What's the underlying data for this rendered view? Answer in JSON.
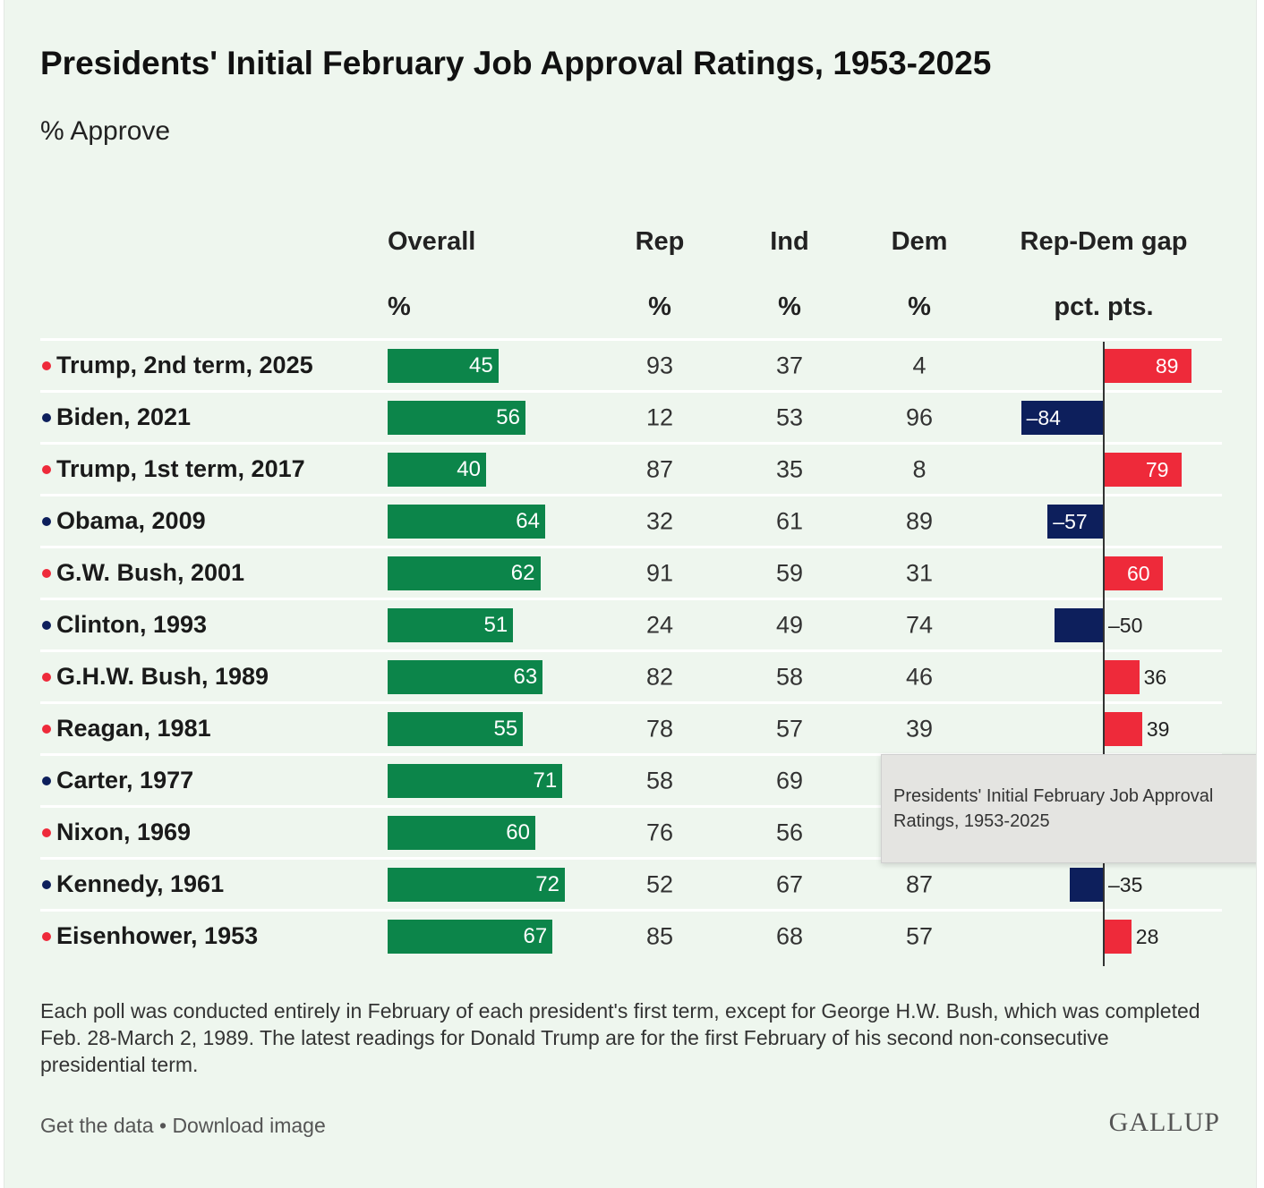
{
  "chart_data": {
    "type": "table",
    "title": "Presidents' Initial February Job Approval Ratings, 1953-2025",
    "subtitle": "% Approve",
    "columns": [
      {
        "key": "overall",
        "label": "Overall",
        "unit": "%"
      },
      {
        "key": "rep",
        "label": "Rep",
        "unit": "%"
      },
      {
        "key": "ind",
        "label": "Ind",
        "unit": "%"
      },
      {
        "key": "dem",
        "label": "Dem",
        "unit": "%"
      },
      {
        "key": "gap",
        "label": "Rep-Dem gap",
        "unit": "pct. pts."
      }
    ],
    "rows": [
      {
        "name": "Trump, 2nd term, 2025",
        "party": "R",
        "overall": 45,
        "rep": 93,
        "ind": 37,
        "dem": 4,
        "gap": 89,
        "gap_label": "89"
      },
      {
        "name": "Biden, 2021",
        "party": "D",
        "overall": 56,
        "rep": 12,
        "ind": 53,
        "dem": 96,
        "gap": -84,
        "gap_label": "–84"
      },
      {
        "name": "Trump, 1st term, 2017",
        "party": "R",
        "overall": 40,
        "rep": 87,
        "ind": 35,
        "dem": 8,
        "gap": 79,
        "gap_label": "79"
      },
      {
        "name": "Obama, 2009",
        "party": "D",
        "overall": 64,
        "rep": 32,
        "ind": 61,
        "dem": 89,
        "gap": -57,
        "gap_label": "–57"
      },
      {
        "name": "G.W. Bush, 2001",
        "party": "R",
        "overall": 62,
        "rep": 91,
        "ind": 59,
        "dem": 31,
        "gap": 60,
        "gap_label": "60"
      },
      {
        "name": "Clinton, 1993",
        "party": "D",
        "overall": 51,
        "rep": 24,
        "ind": 49,
        "dem": 74,
        "gap": -50,
        "gap_label": "–50"
      },
      {
        "name": "G.H.W. Bush, 1989",
        "party": "R",
        "overall": 63,
        "rep": 82,
        "ind": 58,
        "dem": 46,
        "gap": 36,
        "gap_label": "36"
      },
      {
        "name": "Reagan, 1981",
        "party": "R",
        "overall": 55,
        "rep": 78,
        "ind": 57,
        "dem": 39,
        "gap": 39,
        "gap_label": "39"
      },
      {
        "name": "Carter, 1977",
        "party": "D",
        "overall": 71,
        "rep": 58,
        "ind": 69,
        "dem": null,
        "gap": null,
        "gap_label": ""
      },
      {
        "name": "Nixon, 1969",
        "party": "R",
        "overall": 60,
        "rep": 76,
        "ind": 56,
        "dem": null,
        "gap": null,
        "gap_label": ""
      },
      {
        "name": "Kennedy, 1961",
        "party": "D",
        "overall": 72,
        "rep": 52,
        "ind": 67,
        "dem": 87,
        "gap": -35,
        "gap_label": "–35"
      },
      {
        "name": "Eisenhower, 1953",
        "party": "R",
        "overall": 67,
        "rep": 85,
        "ind": 68,
        "dem": 57,
        "gap": 28,
        "gap_label": "28"
      }
    ],
    "colors": {
      "overall": "#0c854a",
      "rep": "#ee2a3a",
      "dem": "#0d1f5c"
    }
  },
  "footnote": "Each poll was conducted entirely in February of each president's first term, except for George H.W. Bush, which was completed Feb. 28-March 2, 1989. The latest readings for Donald Trump are for the first February of his second non-consecutive presidential term.",
  "links": {
    "get_data": "Get the data",
    "separator": "•",
    "download": "Download image"
  },
  "logo_text": "GALLUP",
  "tooltip": {
    "text": "Presidents' Initial February Job Approval Ratings, 1953-2025"
  }
}
